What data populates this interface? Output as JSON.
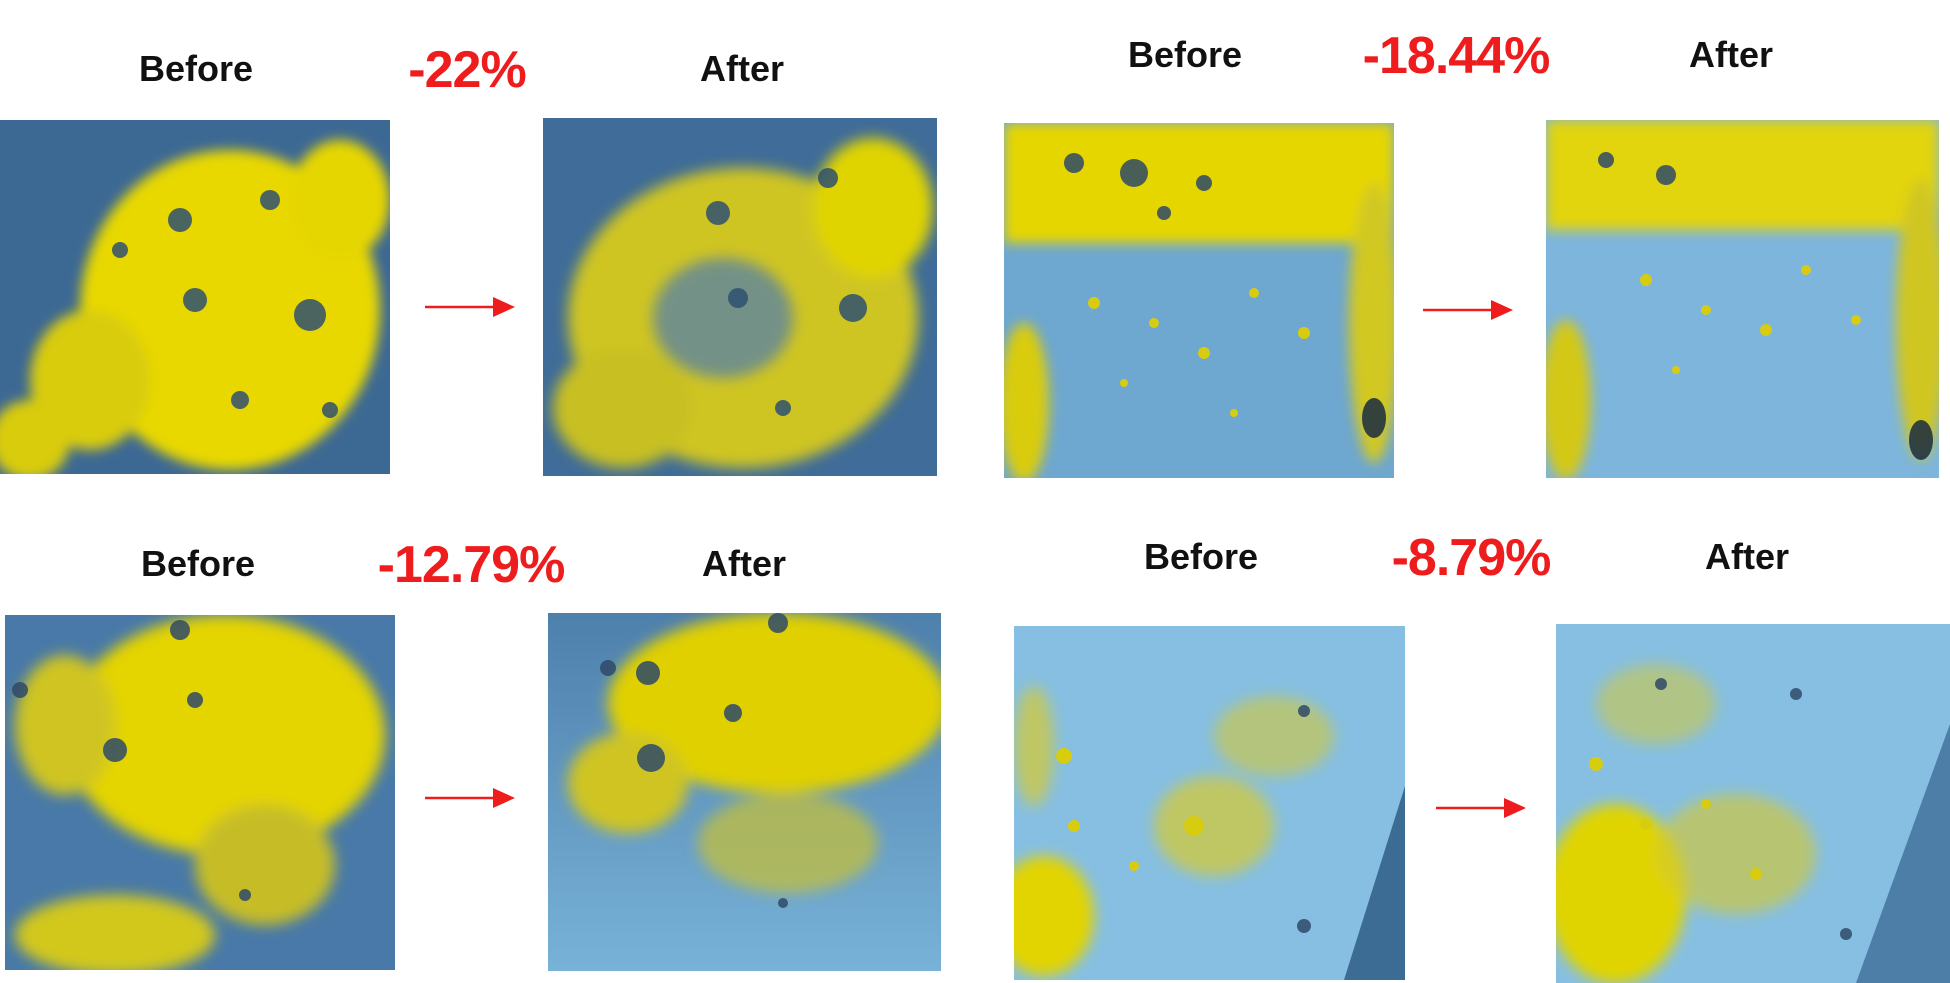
{
  "colors": {
    "percent_text": "#ee1c1c",
    "label_text": "#111111",
    "arrow": "#ee1c1c",
    "yellow_stain": "#f2e200",
    "dark_blue_bg": "#3f6f9c",
    "light_blue_bg": "#7fb7dc"
  },
  "panels": [
    {
      "before_label": "Before",
      "after_label": "After",
      "change": "-22%",
      "arrow_icon": "right-arrow-icon"
    },
    {
      "before_label": "Before",
      "after_label": "After",
      "change": "-18.44%",
      "arrow_icon": "right-arrow-icon"
    },
    {
      "before_label": "Before",
      "after_label": "After",
      "change": "-12.79%",
      "arrow_icon": "right-arrow-icon"
    },
    {
      "before_label": "Before",
      "after_label": "After",
      "change": "-8.79%",
      "arrow_icon": "right-arrow-icon"
    }
  ]
}
